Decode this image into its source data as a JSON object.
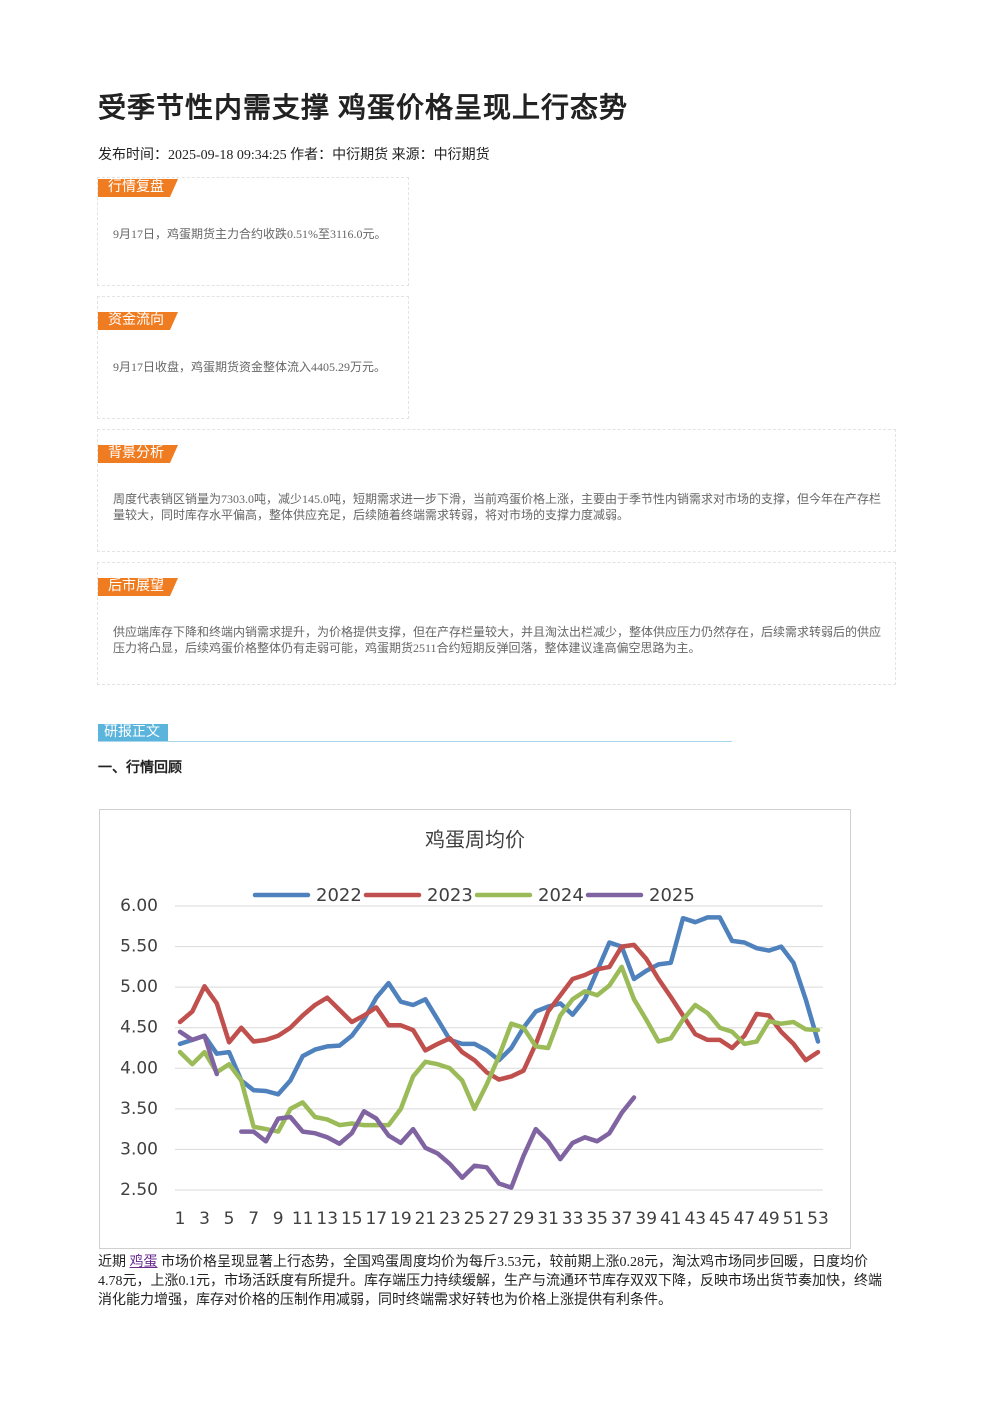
{
  "header": {
    "title": "受季节性内需支撑 鸡蛋价格呈现上行态势",
    "meta": "发布时间：2025-09-18 09:34:25 作者：中衍期货 来源：中衍期货"
  },
  "sections": [
    {
      "heading": "行情复盘",
      "text": "9月17日，鸡蛋期货主力合约收跌0.51%至3116.0元。"
    },
    {
      "heading": "资金流向",
      "text": "9月17日收盘，鸡蛋期货资金整体流入4405.29万元。"
    },
    {
      "heading": "背景分析",
      "text": "周度代表销区销量为7303.0吨，减少145.0吨，短期需求进一步下滑，当前鸡蛋价格上涨，主要由于季节性内销需求对市场的支撑，但今年在产存栏量较大，同时库存水平偏高，整体供应充足，后续随着终端需求转弱，将对市场的支撑力度减弱。"
    },
    {
      "heading": "后市展望",
      "text": "供应端库存下降和终端内销需求提升，为价格提供支撑，但在产存栏量较大，并且淘汰出栏减少，整体供应压力仍然存在，后续需求转弱后的供应压力将凸显，后续鸡蛋价格整体仍有走弱可能，鸡蛋期货2511合约短期反弹回落，整体建议逢高偏空思路为主。"
    }
  ],
  "body": {
    "label": "研报正文",
    "subheading": "一、行情回顾",
    "paragraph": {
      "prefix": "近期 ",
      "link": "鸡蛋",
      "text": " 市场价格呈现显著上行态势，全国鸡蛋周度均价为每斤3.53元，较前期上涨0.28元，淘汰鸡市场同步回暖，日度均价4.78元，上涨0.1元，市场活跃度有所提升。库存端压力持续缓解，生产与流通环节库存双双下降，反映市场出货节奏加快，终端消化能力增强，库存对价格的压制作用减弱，同时终端需求好转也为价格上涨提供有利条件。"
    }
  },
  "chart_data": {
    "type": "line",
    "title": "鸡蛋周均价",
    "categories": [
      1,
      null,
      3,
      null,
      5,
      null,
      7,
      null,
      9,
      null,
      11,
      null,
      13,
      null,
      15,
      null,
      17,
      null,
      19,
      null,
      21,
      null,
      23,
      null,
      25,
      null,
      27,
      null,
      29,
      null,
      31,
      null,
      33,
      null,
      35,
      null,
      37,
      null,
      39,
      null,
      41,
      null,
      43,
      null,
      45,
      null,
      47,
      null,
      49,
      null,
      51,
      null,
      53
    ],
    "ylim": [
      2.5,
      6
    ],
    "yticks": [
      {
        "value": 2.5,
        "label": "2.50"
      },
      {
        "value": 3,
        "label": "3.00"
      },
      {
        "value": 3.5,
        "label": "3.50"
      },
      {
        "value": 4,
        "label": "4.00"
      },
      {
        "value": 4.5,
        "label": "4.50"
      },
      {
        "value": 5,
        "label": "5.00"
      },
      {
        "value": 5.5,
        "label": "5.50"
      },
      {
        "value": 6,
        "label": "6.00"
      }
    ],
    "grid": true,
    "legend": "top",
    "series": [
      {
        "name": "2022",
        "color": "#4f81bd",
        "values": [
          4.3,
          4.35,
          4.4,
          4.18,
          4.2,
          3.85,
          3.73,
          3.72,
          3.68,
          3.85,
          4.15,
          4.23,
          4.27,
          4.28,
          4.4,
          4.6,
          4.87,
          5.05,
          4.82,
          4.78,
          4.85,
          4.6,
          4.35,
          4.3,
          4.3,
          4.22,
          4.1,
          4.25,
          4.5,
          4.7,
          4.76,
          4.8,
          4.66,
          4.85,
          5.2,
          5.55,
          5.5,
          5.1,
          5.2,
          5.28,
          5.3,
          5.85,
          5.8,
          5.86,
          5.86,
          5.57,
          5.55,
          5.48,
          5.45,
          5.5,
          5.3,
          4.85,
          4.33
        ]
      },
      {
        "name": "2023",
        "color": "#c0504d",
        "values": [
          4.57,
          4.7,
          5.01,
          4.8,
          4.32,
          4.5,
          4.33,
          4.35,
          4.4,
          4.5,
          4.65,
          4.78,
          4.87,
          4.72,
          4.57,
          4.65,
          4.75,
          4.53,
          4.53,
          4.47,
          4.22,
          4.3,
          4.37,
          4.2,
          4.1,
          3.95,
          3.86,
          3.9,
          3.97,
          4.3,
          4.7,
          4.9,
          5.1,
          5.15,
          5.22,
          5.25,
          5.5,
          5.52,
          5.35,
          5.1,
          4.88,
          4.65,
          4.42,
          4.35,
          4.35,
          4.25,
          4.4,
          4.67,
          4.65,
          4.45,
          4.3,
          4.1,
          4.2
        ]
      },
      {
        "name": "2024",
        "color": "#9bbb59",
        "values": [
          4.2,
          4.05,
          4.2,
          3.95,
          4.05,
          3.85,
          3.28,
          3.25,
          3.22,
          3.5,
          3.58,
          3.4,
          3.37,
          3.3,
          3.32,
          3.3,
          3.3,
          3.3,
          3.5,
          3.9,
          4.08,
          4.05,
          4.0,
          3.85,
          3.5,
          3.8,
          4.15,
          4.55,
          4.5,
          4.27,
          4.25,
          4.65,
          4.85,
          4.95,
          4.9,
          5.02,
          5.25,
          4.85,
          4.6,
          4.33,
          4.37,
          4.6,
          4.78,
          4.68,
          4.5,
          4.45,
          4.3,
          4.33,
          4.58,
          4.55,
          4.57,
          4.48,
          4.47
        ]
      },
      {
        "name": "2025",
        "color": "#8064a2",
        "values": [
          4.45,
          4.35,
          4.4,
          3.93,
          null,
          3.22,
          3.22,
          3.1,
          3.38,
          3.4,
          3.22,
          3.2,
          3.15,
          3.07,
          3.2,
          3.47,
          3.38,
          3.17,
          3.08,
          3.25,
          3.02,
          2.95,
          2.82,
          2.65,
          2.8,
          2.78,
          2.58,
          2.53,
          2.92,
          3.25,
          3.1,
          2.88,
          3.08,
          3.15,
          3.1,
          3.2,
          3.45,
          3.64,
          null,
          null,
          null,
          null,
          null,
          null,
          null,
          null,
          null,
          null,
          null,
          null,
          null,
          null,
          null
        ]
      }
    ]
  }
}
